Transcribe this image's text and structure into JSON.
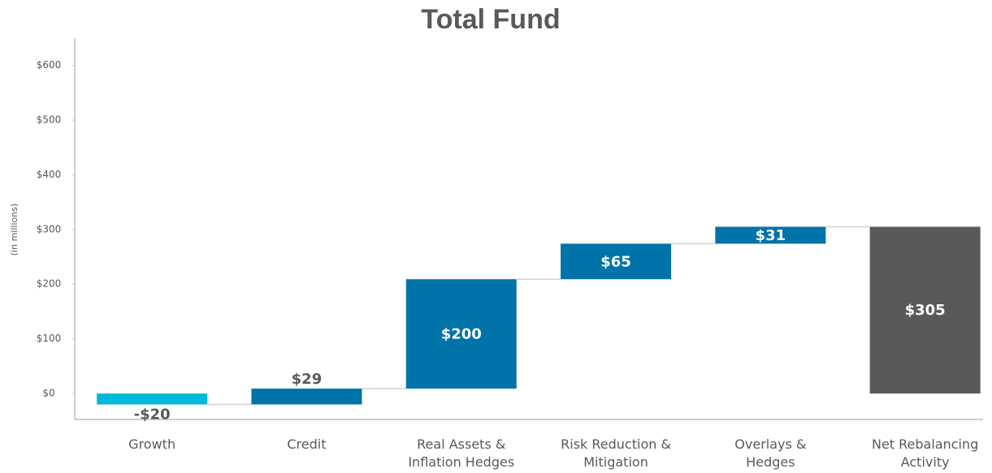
{
  "chart_data": {
    "type": "waterfall",
    "title": "Total Fund",
    "y_label": "(in millions)",
    "categories": [
      "Growth",
      "Credit",
      "Real Assets &\nInflation Hedges",
      "Risk Reduction &\nMitigation",
      "Overlays &\nHedges",
      "Net Rebalancing\nActivity"
    ],
    "values": [
      -20,
      29,
      200,
      65,
      31,
      305
    ],
    "value_labels": [
      "-$20",
      "$29",
      "$200",
      "$65",
      "$31",
      "$305"
    ],
    "is_total": [
      false,
      false,
      false,
      false,
      false,
      true
    ],
    "colors": [
      "#00b8d9",
      "#0073a8",
      "#0073a8",
      "#0073a8",
      "#0073a8",
      "#595959"
    ],
    "ylim": [
      -50,
      650
    ],
    "yticks": [
      {
        "value": 0,
        "label": "$0"
      },
      {
        "value": 100,
        "label": "$100"
      },
      {
        "value": 200,
        "label": "$200"
      },
      {
        "value": 300,
        "label": "$300"
      },
      {
        "value": 400,
        "label": "$400"
      },
      {
        "value": 500,
        "label": "$500"
      },
      {
        "value": 600,
        "label": "$600"
      }
    ],
    "grid": false
  }
}
